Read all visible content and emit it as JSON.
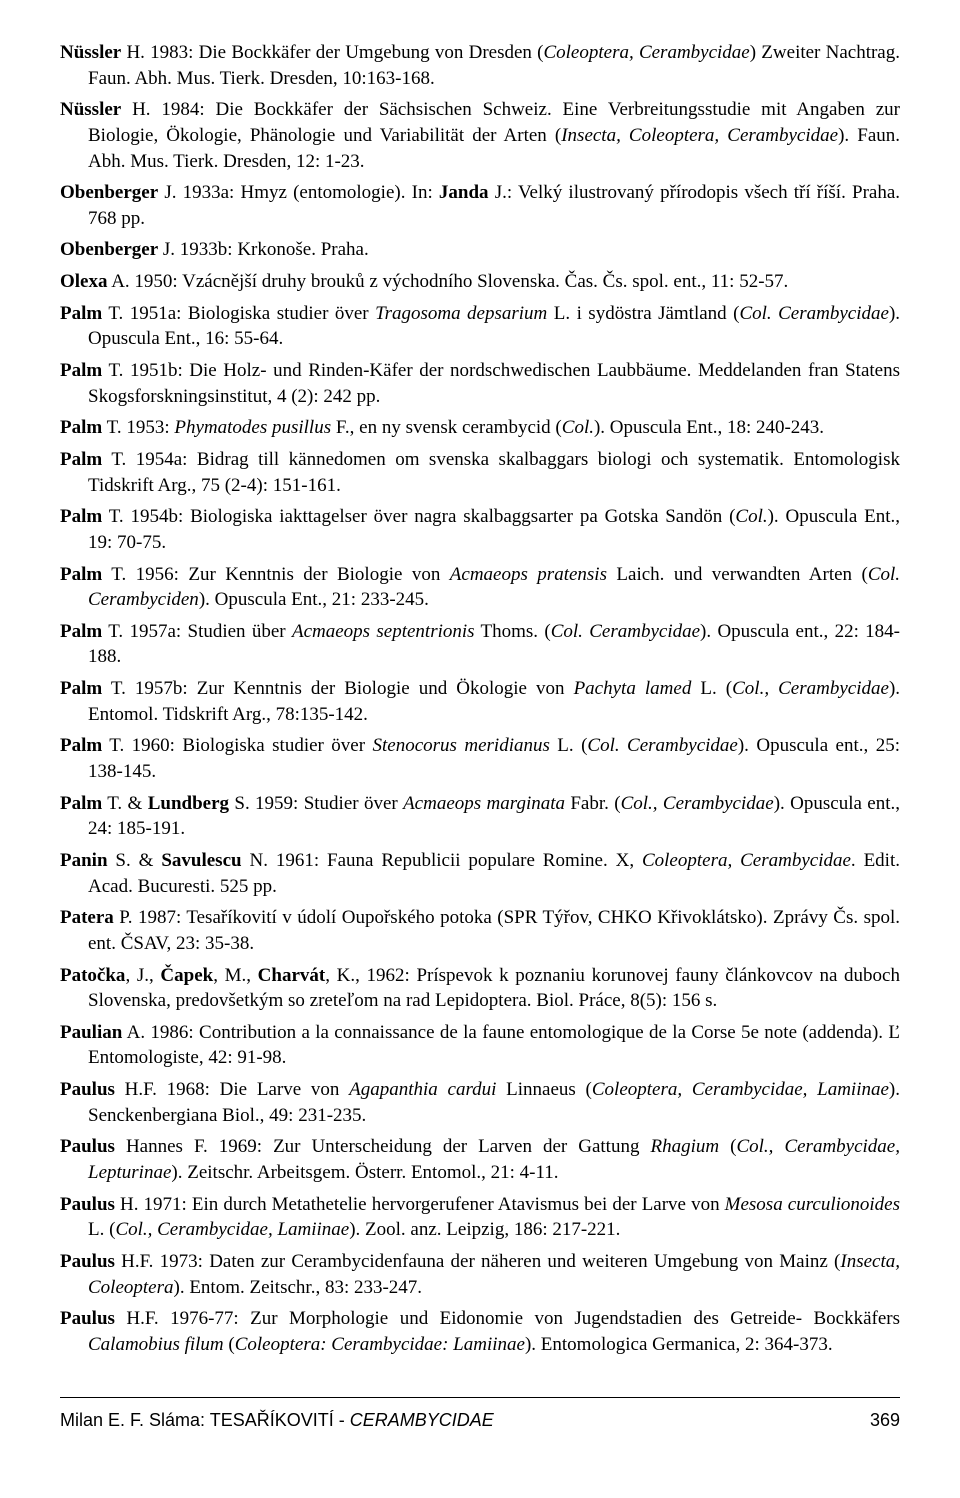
{
  "entries": [
    {
      "html": "<span class='b'>Nüssler</span> H. 1983: Die Bockkäfer der Umgebung von Dresden (<span class='i'>Coleoptera, Cerambycidae</span>) Zweiter Nachtrag. Faun. Abh. Mus. Tierk. Dresden, 10:163-168."
    },
    {
      "html": "<span class='b'>Nüssler</span> H. 1984: Die Bockkäfer der Sächsischen Schweiz. Eine Verbreitungsstudie mit Angaben zur Biologie, Ökologie, Phänologie und Variabilität der Arten (<span class='i'>Insecta, Coleoptera, Cerambycidae</span>). Faun. Abh. Mus. Tierk. Dresden, 12: 1-23."
    },
    {
      "html": "<span class='b'>Obenberger</span> J. 1933a: Hmyz (entomologie). In: <span class='b'>Janda</span> J.: Velký ilustrovaný přírodopis všech tří říší. Praha. 768 pp."
    },
    {
      "html": "<span class='b'>Obenberger</span> J. 1933b: Krkonoše. Praha."
    },
    {
      "html": "<span class='b'>Olexa</span> A. 1950: Vzácnější druhy brouků z východního Slovenska. Čas. Čs. spol. ent., 11: 52-57."
    },
    {
      "html": "<span class='b'>Palm</span> T. 1951a: Biologiska studier över <span class='i'>Tragosoma depsarium</span> L. i sydöstra Jämtland (<span class='i'>Col. Cerambycidae</span>). Opuscula Ent., 16: 55-64."
    },
    {
      "html": "<span class='b'>Palm</span> T. 1951b: Die Holz- und Rinden-Käfer der nordschwedischen Laubbäume. Meddelanden fran Statens Skogsforskningsinstitut, 4 (2): 242 pp."
    },
    {
      "html": "<span class='b'>Palm</span> T. 1953: <span class='i'>Phymatodes pusillus</span> F., en ny svensk cerambycid (<span class='i'>Col.</span>). Opuscula Ent., 18: 240-243."
    },
    {
      "html": "<span class='b'>Palm</span> T. 1954a: Bidrag till kännedomen om svenska skalbaggars biologi och systematik. Entomologisk Tidskrift Arg., 75 (2-4): 151-161."
    },
    {
      "html": "<span class='b'>Palm</span> T. 1954b: Biologiska iakttagelser över nagra skalbaggsarter pa Gotska Sandön (<span class='i'>Col.</span>). Opuscula Ent., 19: 70-75."
    },
    {
      "html": "<span class='b'>Palm</span> T. 1956: Zur Kenntnis der Biologie von <span class='i'>Acmaeops pratensis</span> Laich. und verwandten Arten (<span class='i'>Col. Cerambyciden</span>). Opuscula Ent., 21: 233-245."
    },
    {
      "html": "<span class='b'>Palm</span> T. 1957a: Studien über <span class='i'>Acmaeops septentrionis</span> Thoms. (<span class='i'>Col. Cerambycidae</span>). Opuscula ent., 22: 184-188."
    },
    {
      "html": "<span class='b'>Palm</span> T. 1957b: Zur Kenntnis der Biologie und Ökologie von <span class='i'>Pachyta lamed</span> L. (<span class='i'>Col., Cerambycidae</span>). Entomol. Tidskrift Arg., 78:135-142."
    },
    {
      "html": "<span class='b'>Palm</span> T. 1960: Biologiska studier över <span class='i'>Stenocorus meridianus</span> L. (<span class='i'>Col. Cerambycidae</span>). Opuscula ent., 25: 138-145."
    },
    {
      "html": "<span class='b'>Palm</span> T. & <span class='b'>Lundberg</span> S. 1959: Studier över <span class='i'>Acmaeops marginata</span> Fabr. (<span class='i'>Col., Cerambycidae</span>). Opuscula ent., 24: 185-191."
    },
    {
      "html": "<span class='b'>Panin</span> S. & <span class='b'>Savulescu</span> N. 1961: Fauna Republicii populare Romine. X, <span class='i'>Coleoptera, Cerambycidae</span>. Edit. Acad. Bucuresti. 525 pp."
    },
    {
      "html": "<span class='b'>Patera</span> P. 1987: Tesaříkovití v údolí Oupořského potoka (SPR Týřov, CHKO Křivoklátsko). Zprávy Čs. spol. ent. ČSAV, 23: 35-38."
    },
    {
      "html": "<span class='b'>Patočka</span>, J., <span class='b'>Čapek</span>, M., <span class='b'>Charvát</span>, K., 1962: Príspevok k poznaniu korunovej fauny článkovcov na duboch Slovenska, predovšetkým so zreteľom na rad Lepidoptera. Biol. Práce, 8(5): 156 s."
    },
    {
      "html": "<span class='b'>Paulian</span> A. 1986: Contribution a la connaissance de la faune entomologique de la Corse 5e note (addenda). Ľ Entomologiste, 42: 91-98."
    },
    {
      "html": "<span class='b'>Paulus</span> H.F. 1968: Die Larve von <span class='i'>Agapanthia cardui</span> Linnaeus (<span class='i'>Coleoptera, Cerambycidae, Lamiinae</span>). Senckenbergiana Biol., 49: 231-235."
    },
    {
      "html": "<span class='b'>Paulus</span> Hannes F. 1969: Zur Unterscheidung der Larven der Gattung <span class='i'>Rhagium</span> (<span class='i'>Col., Cerambycidae, Lepturinae</span>). Zeitschr. Arbeitsgem. Österr. Entomol., 21: 4-11."
    },
    {
      "html": "<span class='b'>Paulus</span> H. 1971: Ein durch Metathetelie hervorgerufener Atavismus bei der Larve von <span class='i'>Mesosa curculionoides</span> L. (<span class='i'>Col., Cerambycidae, Lamiinae</span>). Zool. anz. Leipzig, 186: 217-221."
    },
    {
      "html": "<span class='b'>Paulus</span> H.F. 1973: Daten zur Cerambycidenfauna der näheren und weiteren Umgebung von Mainz (<span class='i'>Insecta, Coleoptera</span>). Entom. Zeitschr., 83: 233-247."
    },
    {
      "html": "<span class='b'>Paulus</span> H.F. 1976-77: Zur Morphologie und Eidonomie von Jugendstadien des Getreide- Bockkäfers <span class='i'>Calamobius filum</span> (<span class='i'>Coleoptera: Cerambycidae: Lamiinae</span>). Entomologica Germanica, 2: 364-373."
    }
  ],
  "footer": {
    "author": "Milan E. F. Sláma: TESAŘÍKOVITÍ - ",
    "title_ital": "CERAMBYCIDAE",
    "page": "369"
  }
}
